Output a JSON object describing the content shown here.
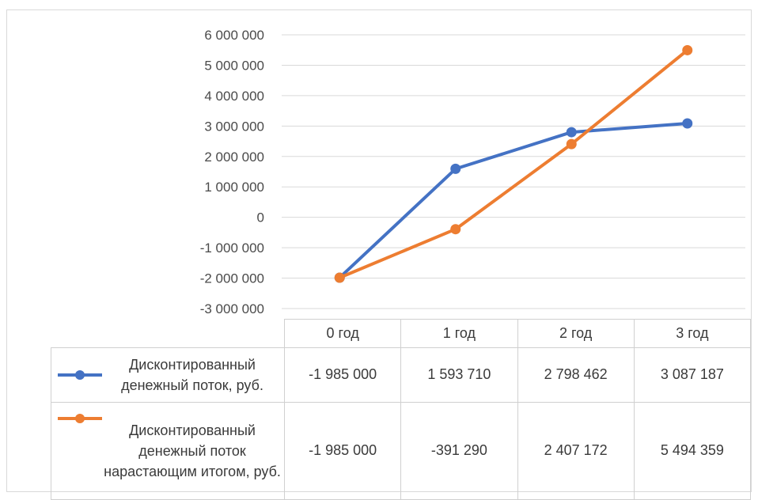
{
  "chart_data": {
    "type": "line",
    "categories": [
      "0 год",
      "1 год",
      "2 год",
      "3 год"
    ],
    "series": [
      {
        "name": "Дисконтированный денежный поток, руб.",
        "values": [
          -1985000,
          1593710,
          2798462,
          3087187
        ],
        "labels": [
          "-1 985 000",
          "1 593 710",
          "2 798 462",
          "3 087 187"
        ],
        "color": "#4472C4"
      },
      {
        "name": "Дисконтированный денежный поток нарастающим итогом, руб.",
        "values": [
          -1985000,
          -391290,
          2407172,
          5494359
        ],
        "labels": [
          "-1 985 000",
          "-391 290",
          "2 407 172",
          "5 494 359"
        ],
        "color": "#ED7D31"
      }
    ],
    "ylim": [
      -3000000,
      6000000
    ],
    "yticks": [
      6000000,
      5000000,
      4000000,
      3000000,
      2000000,
      1000000,
      0,
      -1000000,
      -2000000,
      -3000000
    ],
    "ytick_labels": [
      "6 000 000",
      "5 000 000",
      "4 000 000",
      "3 000 000",
      "2 000 000",
      "1 000 000",
      "0",
      "-1 000 000",
      "-2 000 000",
      "-3 000 000"
    ],
    "grid": true,
    "legend": "data-table",
    "gridline_color": "#d9d9d9"
  }
}
